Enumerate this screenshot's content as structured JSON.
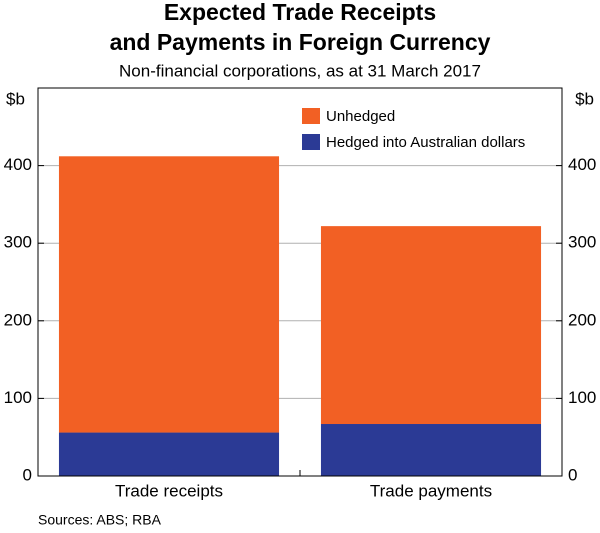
{
  "chart_data": {
    "type": "stacked_bar",
    "title": "Expected Trade Receipts",
    "title_line2": "and Payments in Foreign Currency",
    "subtitle": "Non-financial corporations, as at 31 March 2017",
    "y_label": "$b",
    "y2_label": "$b",
    "categories": [
      "Trade receipts",
      "Trade payments"
    ],
    "series": [
      {
        "name": "Hedged into Australian dollars",
        "color": "#2b3a95",
        "values": [
          56,
          67
        ]
      },
      {
        "name": "Unhedged",
        "color": "#f26024",
        "values": [
          356,
          255
        ]
      }
    ],
    "ylim": [
      0,
      500
    ],
    "yticks": [
      0,
      100,
      200,
      300,
      400
    ],
    "y2lim": [
      0,
      500
    ],
    "y2ticks": [
      0,
      100,
      200,
      300,
      400
    ],
    "grid": true,
    "legend": "top-right",
    "source": "Sources: ABS; RBA"
  }
}
